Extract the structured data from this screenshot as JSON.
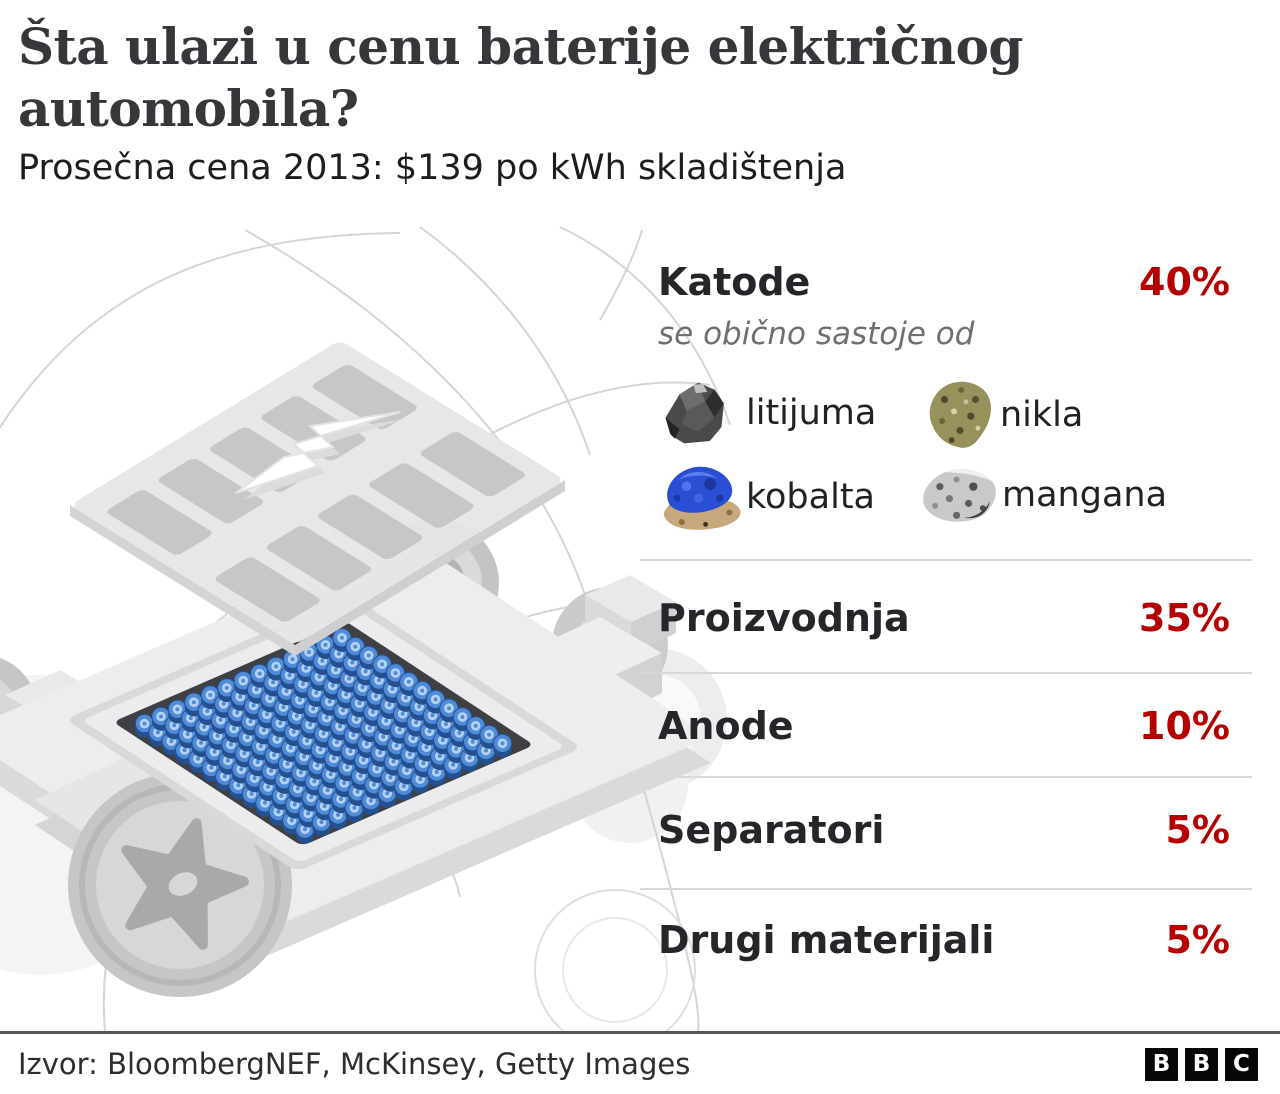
{
  "header": {
    "title": "Šta ulazi u cenu baterije električnog automobila?",
    "subtitle": "Prosečna cena 2013: $139 po kWh skladištenja"
  },
  "panel": {
    "katode": {
      "label": "Katode",
      "value": "40%",
      "note": "se obično sastoje od",
      "minerals": [
        {
          "name": "litijuma"
        },
        {
          "name": "nikla"
        },
        {
          "name": "kobalta"
        },
        {
          "name": "mangana"
        }
      ]
    },
    "items": [
      {
        "label": "Proizvodnja",
        "value": "35%"
      },
      {
        "label": "Anode",
        "value": "10%"
      },
      {
        "label": "Separatori",
        "value": "5%"
      },
      {
        "label": "Drugi materijali",
        "value": "5%"
      }
    ]
  },
  "footer": {
    "source": "Izvor: BloombergNEF, McKinsey, Getty Images",
    "logo_letters": [
      "B",
      "B",
      "C"
    ]
  },
  "colors": {
    "accent_red": "#b40000",
    "text_dark": "#26262a",
    "note_grey": "#6f6f73",
    "divider_grey": "#d8d8d8",
    "footer_rule_grey": "#57575a",
    "cell_blue": "#4f8bd8",
    "cell_blue_dark": "#24508f",
    "cell_blue_light": "#b6d2f1",
    "illustration_grey": "#d9d9db"
  },
  "chart_data": {
    "type": "table",
    "title": "Šta ulazi u cenu baterije električnog automobila?",
    "subtitle": "Prosečna cena 2013: $139 po kWh skladištenja",
    "categories": [
      "Katode",
      "Proizvodnja",
      "Anode",
      "Separatori",
      "Drugi materijali"
    ],
    "values": [
      40,
      35,
      10,
      5,
      5
    ],
    "unit": "%",
    "notes": {
      "Katode": "se obično sastoje od: litijuma, nikla, kobalta, mangana"
    },
    "legend_position": "none",
    "source": "Izvor: BloombergNEF, McKinsey, Getty Images"
  }
}
